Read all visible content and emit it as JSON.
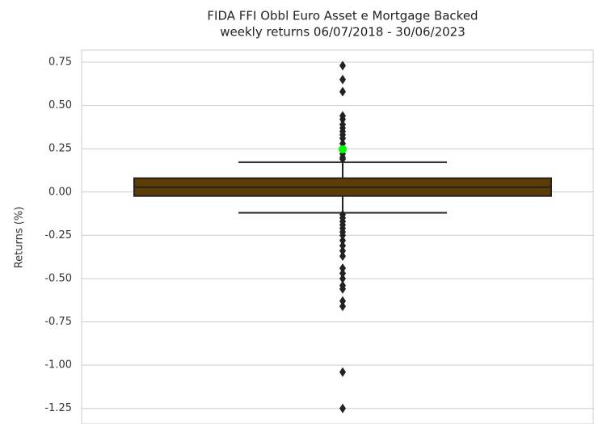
{
  "chart_data": {
    "type": "box",
    "title": "FIDA FFI Obbl Euro Asset e Mortgage Backed",
    "subtitle": "weekly returns 06/07/2018 - 30/06/2023",
    "ylabel": "Returns (%)",
    "ylim": [
      -1.34,
      0.82
    ],
    "yticks": [
      0.75,
      {
        "value": 0.5,
        "label": "0.50"
      },
      0.25,
      {
        "value": 0,
        "label": "0.00"
      },
      -0.25,
      {
        "value": -0.5,
        "label": "-0.50"
      },
      -0.75,
      {
        "value": -1,
        "label": "-1.00"
      },
      -1.25
    ],
    "grid": true,
    "color": "#5c3d03",
    "mean_color": "#00ff00",
    "whisker_low": -0.12,
    "q1": -0.023,
    "median": 0.028,
    "q3": 0.08,
    "whisker_high": 0.172,
    "mean": 0.247,
    "outliers": [
      0.73,
      0.65,
      0.58,
      0.44,
      0.42,
      0.39,
      0.37,
      0.35,
      0.33,
      0.31,
      0.28,
      0.25,
      0.22,
      0.2,
      0.19,
      -0.13,
      -0.15,
      -0.17,
      -0.19,
      -0.21,
      -0.23,
      -0.25,
      -0.28,
      -0.31,
      -0.34,
      -0.37,
      -0.44,
      -0.47,
      -0.5,
      -0.54,
      -0.56,
      -0.63,
      -0.66,
      -1.04,
      -1.25
    ]
  }
}
